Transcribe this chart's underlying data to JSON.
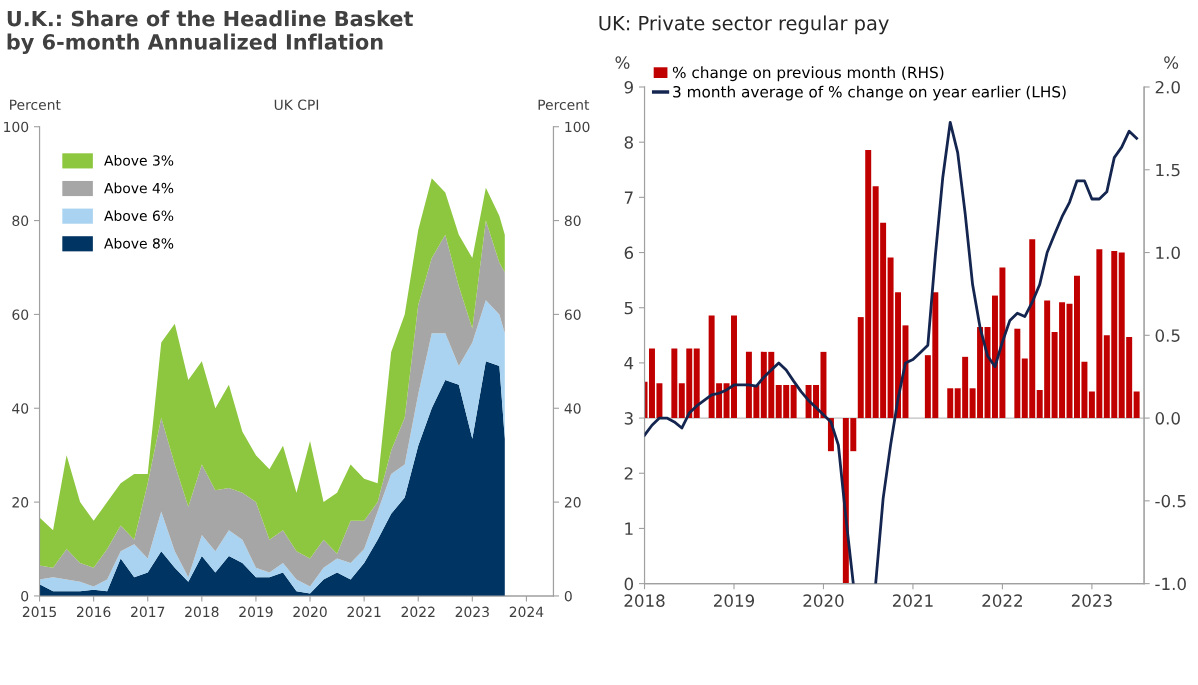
{
  "chart_data": [
    {
      "type": "area",
      "stacked": true,
      "title": "U.K.: Share of the Headline Basket by 6-month Annualized Inflation",
      "annotations": [
        "UK CPI"
      ],
      "ylabel": "Percent",
      "y2label": "Percent",
      "x": [
        2015.0,
        2015.25,
        2015.5,
        2015.75,
        2016.0,
        2016.25,
        2016.5,
        2016.75,
        2017.0,
        2017.25,
        2017.5,
        2017.75,
        2018.0,
        2018.25,
        2018.5,
        2018.75,
        2019.0,
        2019.25,
        2019.5,
        2019.75,
        2020.0,
        2020.25,
        2020.5,
        2020.75,
        2021.0,
        2021.25,
        2021.5,
        2021.75,
        2022.0,
        2022.25,
        2022.5,
        2022.75,
        2023.0,
        2023.25,
        2023.5,
        2023.6
      ],
      "series": [
        {
          "name": "Above 8%",
          "color": "#003462",
          "values": [
            2.5,
            1,
            1,
            1,
            1.3,
            1,
            8,
            4,
            5,
            9.5,
            6,
            3,
            8.5,
            5,
            8.5,
            7,
            4,
            4,
            5,
            1,
            0.5,
            3.5,
            5,
            3.5,
            7,
            12,
            17.5,
            21,
            32,
            40,
            46,
            45,
            33.5,
            50,
            49,
            33.5
          ]
        },
        {
          "name": "Above 6%",
          "color": "#a9d3f0",
          "values": [
            1,
            3,
            2.5,
            2,
            0.7,
            2.5,
            1.5,
            7,
            3,
            8.5,
            3.5,
            1,
            4.5,
            4.5,
            5.5,
            5,
            2,
            1,
            2,
            2.5,
            1.5,
            2.5,
            3,
            3.5,
            3,
            6,
            8.5,
            7,
            11,
            16,
            10,
            4,
            20.5,
            13,
            11,
            22.5
          ]
        },
        {
          "name": "Above 4%",
          "color": "#a6a6a6",
          "values": [
            3,
            2,
            6.5,
            4,
            4,
            6.5,
            5.5,
            1,
            16,
            20,
            18.5,
            15,
            15,
            13,
            9,
            10,
            14,
            7,
            7,
            6,
            6,
            6,
            1,
            9,
            6,
            2,
            5,
            10,
            19,
            16,
            21,
            17,
            3,
            17,
            11,
            13
          ]
        },
        {
          "name": "Above 3%",
          "color": "#8dc63f",
          "values": [
            10.2,
            8,
            20,
            13,
            10,
            10,
            9,
            14,
            2,
            16,
            30,
            27,
            22,
            17.5,
            22,
            13,
            10,
            15,
            18,
            12.5,
            25,
            8,
            13,
            12,
            9,
            4,
            21,
            22,
            16,
            17,
            9,
            11,
            15,
            7,
            10,
            8
          ]
        }
      ],
      "xlim": [
        2015,
        2024.5
      ],
      "xticks": [
        2015,
        2016,
        2017,
        2018,
        2019,
        2020,
        2021,
        2022,
        2023,
        2024
      ],
      "ylim": [
        0,
        100
      ],
      "yticks": [
        0,
        20,
        40,
        60,
        80,
        100
      ],
      "y2lim": [
        0,
        100
      ],
      "y2ticks": [
        0,
        20,
        40,
        60,
        80,
        100
      ],
      "legend": "top left",
      "grid": false
    },
    {
      "type": "bar",
      "title": "UK: Private sector regular pay",
      "ylabel": "%",
      "y2label": "%",
      "series": [
        {
          "name": "% change on previous month (RHS)",
          "type": "bar",
          "axis": "y2",
          "color": "#c00000",
          "x": [
            "2018-01",
            "2018-02",
            "2018-03",
            "2018-04",
            "2018-05",
            "2018-06",
            "2018-07",
            "2018-08",
            "2018-09",
            "2018-10",
            "2018-11",
            "2018-12",
            "2019-01",
            "2019-02",
            "2019-03",
            "2019-04",
            "2019-05",
            "2019-06",
            "2019-07",
            "2019-08",
            "2019-09",
            "2019-10",
            "2019-11",
            "2019-12",
            "2020-01",
            "2020-02",
            "2020-03",
            "2020-04",
            "2020-05",
            "2020-06",
            "2020-07",
            "2020-08",
            "2020-09",
            "2020-10",
            "2020-11",
            "2020-12",
            "2021-01",
            "2021-02",
            "2021-03",
            "2021-04",
            "2021-05",
            "2021-06",
            "2021-07",
            "2021-08",
            "2021-09",
            "2021-10",
            "2021-11",
            "2021-12",
            "2022-01",
            "2022-02",
            "2022-03",
            "2022-04",
            "2022-05",
            "2022-06",
            "2022-07",
            "2022-08",
            "2022-09",
            "2022-10",
            "2022-11",
            "2022-12",
            "2023-01",
            "2023-02",
            "2023-03",
            "2023-04",
            "2023-05",
            "2023-06",
            "2023-07"
          ],
          "values": [
            0.22,
            0.42,
            0.21,
            0,
            0.42,
            0.21,
            0.42,
            0.42,
            0,
            0.62,
            0.21,
            0.21,
            0.62,
            0,
            0.4,
            0.2,
            0.4,
            0.4,
            0.2,
            0.2,
            0.2,
            0,
            0.2,
            0.2,
            0.4,
            -0.2,
            0,
            -1.0,
            -0.2,
            0.61,
            1.62,
            1.4,
            1.18,
            0.97,
            0.76,
            0.56,
            0,
            0,
            0.38,
            0.76,
            0,
            0.18,
            0.18,
            0.37,
            0.18,
            0.55,
            0.55,
            0.74,
            0.91,
            0,
            0.54,
            0.36,
            1.08,
            0.17,
            0.71,
            0.52,
            0.7,
            0.69,
            0.86,
            0.34,
            0.16,
            1.02,
            0.5,
            1.01,
            1.0,
            0.49,
            0.16
          ]
        },
        {
          "name": "3 month average of % change on year earlier (LHS)",
          "type": "line",
          "axis": "y",
          "color": "#14254f",
          "x": [
            "2018-01",
            "2018-02",
            "2018-03",
            "2018-04",
            "2018-05",
            "2018-06",
            "2018-07",
            "2018-08",
            "2018-09",
            "2018-10",
            "2018-11",
            "2018-12",
            "2019-01",
            "2019-02",
            "2019-03",
            "2019-04",
            "2019-05",
            "2019-06",
            "2019-07",
            "2019-08",
            "2019-09",
            "2019-10",
            "2019-11",
            "2019-12",
            "2020-01",
            "2020-02",
            "2020-03",
            "2020-04",
            "2020-05",
            "2020-06",
            "2020-07",
            "2020-08",
            "2020-09",
            "2020-10",
            "2020-11",
            "2020-12",
            "2021-01",
            "2021-02",
            "2021-03",
            "2021-04",
            "2021-05",
            "2021-06",
            "2021-07",
            "2021-08",
            "2021-09",
            "2021-10",
            "2021-11",
            "2021-12",
            "2022-01",
            "2022-02",
            "2022-03",
            "2022-04",
            "2022-05",
            "2022-06",
            "2022-07",
            "2022-08",
            "2022-09",
            "2022-10",
            "2022-11",
            "2022-12",
            "2023-01",
            "2023-02",
            "2023-03",
            "2023-04",
            "2023-05",
            "2023-06",
            "2023-07"
          ],
          "values": [
            2.69,
            2.87,
            3.0,
            3.0,
            2.93,
            2.82,
            3.09,
            3.22,
            3.32,
            3.42,
            3.45,
            3.51,
            3.6,
            3.6,
            3.6,
            3.58,
            3.74,
            3.87,
            4.0,
            3.87,
            3.67,
            3.48,
            3.32,
            3.19,
            3.06,
            2.93,
            2.51,
            1.2,
            0.0,
            null,
            null,
            0.0,
            1.54,
            2.51,
            3.35,
            4.0,
            4.06,
            4.19,
            4.32,
            5.94,
            7.36,
            8.36,
            7.81,
            6.71,
            5.42,
            4.64,
            4.13,
            3.93,
            4.38,
            4.77,
            4.9,
            4.84,
            5.1,
            5.42,
            6.0,
            6.33,
            6.65,
            6.91,
            7.3,
            7.3,
            6.97,
            6.97,
            7.1,
            7.72,
            7.91,
            8.2,
            8.07
          ]
        }
      ],
      "xlim": [
        "2018",
        "2023-08"
      ],
      "xticks": [
        "2018",
        "2019",
        "2020",
        "2021",
        "2022",
        "2023"
      ],
      "ylim": [
        0,
        9
      ],
      "yticks": [
        0,
        1,
        2,
        3,
        4,
        5,
        6,
        7,
        8,
        9
      ],
      "y2lim": [
        -1.0,
        2.0
      ],
      "y2ticks": [
        {
          "value": -1.0,
          "label": "-1.0"
        },
        {
          "value": -0.5,
          "label": "-0.5"
        },
        {
          "value": 0.0,
          "label": "0.0"
        },
        {
          "value": 0.5,
          "label": "0.5"
        },
        {
          "value": 1.0,
          "label": "1.0"
        },
        {
          "value": 1.5,
          "label": "1.5"
        },
        {
          "value": 2.0,
          "label": "2.0"
        }
      ],
      "ref_lines": [
        {
          "axis": "y2",
          "value": 0.0,
          "color": "#bfbfbf"
        }
      ],
      "legend": "top left",
      "grid": false
    }
  ]
}
